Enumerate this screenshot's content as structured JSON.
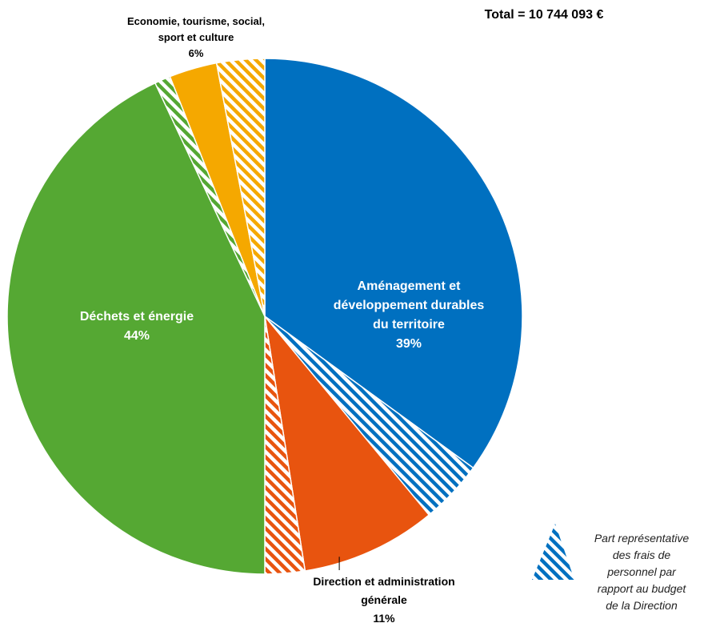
{
  "chart_data": {
    "type": "pie",
    "title": "Total = 10 744 093 €",
    "slices": [
      {
        "label_lines": [
          "Aménagement et",
          "développement durables",
          "du territoire"
        ],
        "percent_label": "39%",
        "value": 39,
        "hatched_portion": 4,
        "color": "#0070C0"
      },
      {
        "label_lines": [
          "Direction et administration",
          "générale"
        ],
        "percent_label": "11%",
        "value": 11,
        "hatched_portion": 2.5,
        "color": "#E8540F"
      },
      {
        "label_lines": [
          "Déchets et énergie"
        ],
        "percent_label": "44%",
        "value": 44,
        "hatched_portion": 1,
        "color": "#55A833"
      },
      {
        "label_lines": [
          "Economie,  tourisme, social,",
          "sport et culture"
        ],
        "percent_label": "6%",
        "value": 6,
        "hatched_portion": 3,
        "color": "#F5A800"
      }
    ],
    "legend": {
      "position": "bottom-right",
      "lines": [
        "Part représentative",
        "des frais de",
        "personnel par",
        "rapport au budget",
        "de la Direction"
      ],
      "color": "#0070C0"
    }
  }
}
